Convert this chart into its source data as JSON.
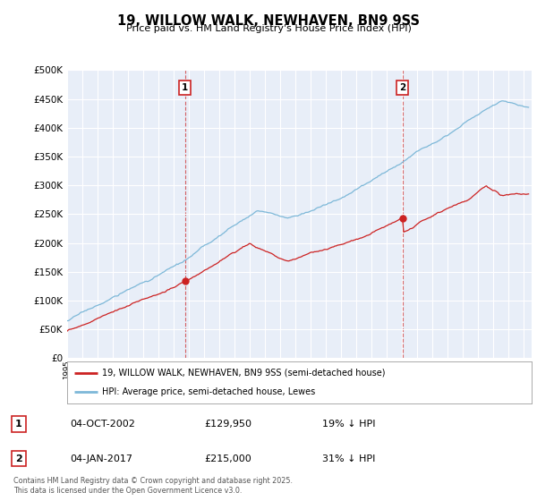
{
  "title": "19, WILLOW WALK, NEWHAVEN, BN9 9SS",
  "subtitle": "Price paid vs. HM Land Registry's House Price Index (HPI)",
  "ylabel_ticks": [
    "£0",
    "£50K",
    "£100K",
    "£150K",
    "£200K",
    "£250K",
    "£300K",
    "£350K",
    "£400K",
    "£450K",
    "£500K"
  ],
  "ytick_values": [
    0,
    50000,
    100000,
    150000,
    200000,
    250000,
    300000,
    350000,
    400000,
    450000,
    500000
  ],
  "ylim": [
    0,
    500000
  ],
  "xlim_start": 1995.0,
  "xlim_end": 2025.5,
  "hpi_color": "#7db8d8",
  "price_color": "#cc2222",
  "marker1_date": 2002.75,
  "marker1_price": 129950,
  "marker2_date": 2017.02,
  "marker2_price": 215000,
  "legend_label1": "19, WILLOW WALK, NEWHAVEN, BN9 9SS (semi-detached house)",
  "legend_label2": "HPI: Average price, semi-detached house, Lewes",
  "table_row1": [
    "1",
    "04-OCT-2002",
    "£129,950",
    "19% ↓ HPI"
  ],
  "table_row2": [
    "2",
    "04-JAN-2017",
    "£215,000",
    "31% ↓ HPI"
  ],
  "footnote": "Contains HM Land Registry data © Crown copyright and database right 2025.\nThis data is licensed under the Open Government Licence v3.0.",
  "background_color": "#ffffff",
  "plot_bg_color": "#e8eef8",
  "grid_color": "#ffffff"
}
